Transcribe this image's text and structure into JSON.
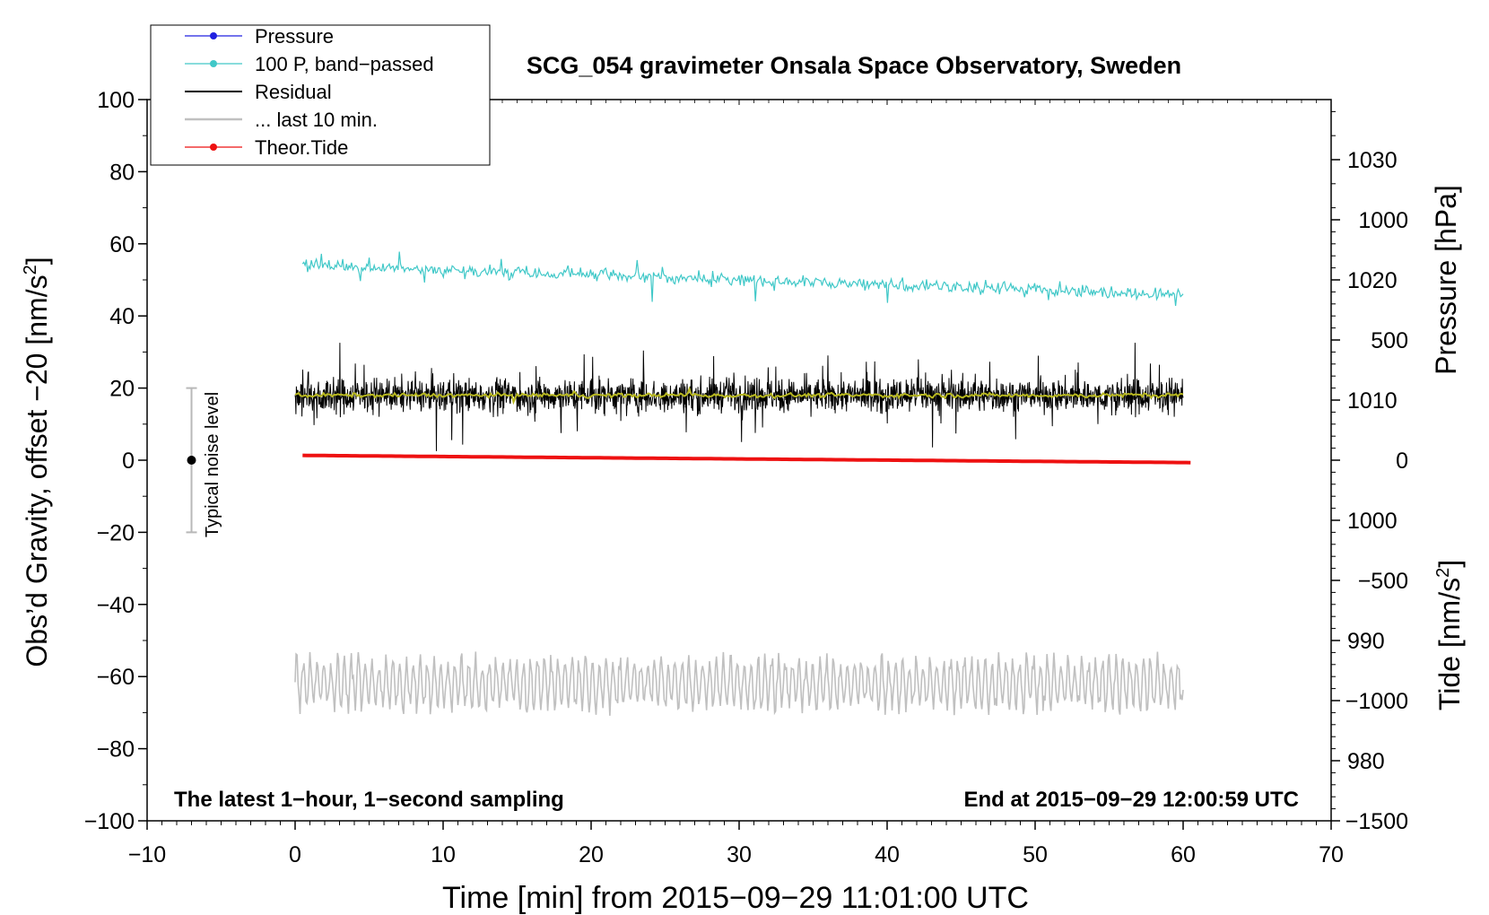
{
  "chart_data": {
    "type": "line",
    "title": "SCG_054 gravimeter Onsala Space Observatory, Sweden",
    "xlabel": "Time [min] from 2015−09−29 11:01:00 UTC",
    "ylabel_left": "Obs’d Gravity, offset −20 [nm/s",
    "ylabel_left_sup": "2",
    "ylabel_left_end": "]",
    "ylabel_pressure": "Pressure [hPa]",
    "ylabel_tide": "Tide [nm/s",
    "ylabel_tide_sup": "2",
    "ylabel_tide_end": "]",
    "xlim": [
      -10,
      70
    ],
    "ylim": [
      -100,
      100
    ],
    "pressure_lim": [
      975,
      1035
    ],
    "tide_lim": [
      -1500,
      1500
    ],
    "x_ticks": [
      -10,
      0,
      10,
      20,
      30,
      40,
      50,
      60,
      70
    ],
    "x_tick_labels": [
      "−10",
      "0",
      "10",
      "20",
      "30",
      "40",
      "50",
      "60",
      "70"
    ],
    "y_ticks": [
      -100,
      -80,
      -60,
      -40,
      -20,
      0,
      20,
      40,
      60,
      80,
      100
    ],
    "y_tick_labels": [
      "−100",
      "−80",
      "−60",
      "−40",
      "−20",
      "0",
      "20",
      "40",
      "60",
      "80",
      "100"
    ],
    "pressure_ticks": [
      980,
      990,
      1000,
      1010,
      1020,
      1030
    ],
    "pressure_tick_labels": [
      "980",
      "990",
      "1000",
      "1010",
      "1020",
      "1030"
    ],
    "tide_ticks": [
      -1500,
      -1000,
      -500,
      0,
      500,
      1000
    ],
    "tide_tick_labels": [
      "−1500",
      "−1000",
      "−500",
      "0",
      "500",
      "1000"
    ],
    "legend": [
      {
        "label": "Pressure",
        "color": "#2020e0",
        "marker": true
      },
      {
        "label": "100 P, band−passed",
        "color": "#40c8c8",
        "marker": true
      },
      {
        "label": "Residual",
        "color": "#000000",
        "marker": false
      },
      {
        "label": "... last 10 min.",
        "color": "#c0c0c0",
        "marker": false
      },
      {
        "label": "Theor.Tide",
        "color": "#ee1111",
        "marker": true
      }
    ],
    "legend_position": "top-left",
    "annotations": {
      "left": "The latest 1−hour, 1−second sampling",
      "right": "End at 2015−09−29 12:00:59 UTC",
      "noise": "Typical noise level"
    },
    "noise_bar": {
      "x": -7,
      "center": 0,
      "low": -20,
      "high": 20
    },
    "series": [
      {
        "name": "100 P, band−passed",
        "color": "#40c8c8",
        "x_range": [
          0.5,
          60
        ],
        "level_start": 54,
        "level_end": 46,
        "amplitude": 3.5
      },
      {
        "name": "Residual",
        "color": "#000000",
        "x_range": [
          0,
          60
        ],
        "level_start": 18,
        "level_end": 18,
        "amplitude": 9
      },
      {
        "name": "Residual smoothed",
        "color": "#b8b820",
        "x_range": [
          0,
          60
        ],
        "level_start": 18,
        "level_end": 18,
        "amplitude": 1
      },
      {
        "name": "Theor.Tide",
        "color": "#ee1111",
        "x_range": [
          0.5,
          60.5
        ],
        "tide_start": 20,
        "tide_end": -10
      },
      {
        "name": "... last 10 min.",
        "color": "#c0c0c0",
        "x_range": [
          0,
          60
        ],
        "level_start": -62,
        "level_end": -62,
        "amplitude": 6
      }
    ]
  }
}
